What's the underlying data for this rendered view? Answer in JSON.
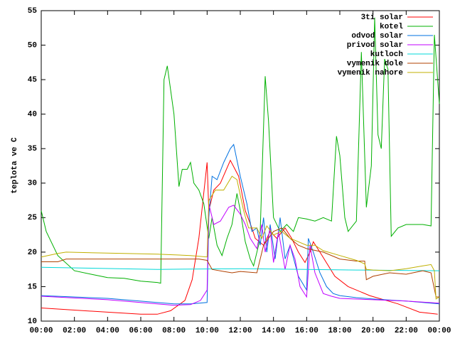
{
  "chart_data": {
    "type": "line",
    "y_label": "teplota ve C",
    "ylim": [
      10,
      55
    ],
    "yticks": [
      10,
      15,
      20,
      25,
      30,
      35,
      40,
      45,
      50,
      55
    ],
    "xlim": [
      0,
      24
    ],
    "xticks": [
      {
        "value": 0,
        "label": "00:00"
      },
      {
        "value": 2,
        "label": "02:00"
      },
      {
        "value": 4,
        "label": "04:00"
      },
      {
        "value": 6,
        "label": "06:00"
      },
      {
        "value": 8,
        "label": "08:00"
      },
      {
        "value": 10,
        "label": "10:00"
      },
      {
        "value": 12,
        "label": "12:00"
      },
      {
        "value": 14,
        "label": "14:00"
      },
      {
        "value": 16,
        "label": "16:00"
      },
      {
        "value": 18,
        "label": "18:00"
      },
      {
        "value": 20,
        "label": "20:00"
      },
      {
        "value": 22,
        "label": "22:00"
      },
      {
        "value": 24,
        "label": "00:00"
      }
    ],
    "legend": "top-right",
    "series": [
      {
        "name": "3ti solar",
        "color": "#ff0000",
        "x": [
          0,
          2,
          4,
          6,
          7,
          7.8,
          8.66,
          9.1,
          9.5,
          10,
          10.1,
          10.4,
          10.8,
          11.4,
          11.9,
          12.3,
          12.7,
          12.9,
          13.4,
          13.8,
          14.2,
          14.7,
          15.1,
          15.5,
          15.9,
          16.2,
          16.4,
          16.8,
          17.7,
          18.5,
          19.8,
          21.5,
          22.8,
          23.9
        ],
        "values": [
          11.9,
          11.6,
          11.3,
          11.0,
          11.0,
          11.5,
          13,
          16,
          22,
          33,
          26,
          29,
          30,
          33.3,
          31,
          26,
          23.5,
          22,
          21,
          23,
          22,
          23.5,
          22,
          20,
          18.5,
          20,
          21.5,
          20,
          16.5,
          15,
          13.7,
          12.5,
          11.3,
          11
        ]
      },
      {
        "name": "kotel",
        "color": "#00b000",
        "x": [
          0,
          0.3,
          1,
          2,
          3,
          4,
          5,
          6,
          7,
          7.2,
          7.4,
          7.6,
          8,
          8.3,
          8.5,
          8.8,
          9,
          9.2,
          9.5,
          9.8,
          10.1,
          10.3,
          10.6,
          10.9,
          11.2,
          11.5,
          11.8,
          12,
          12.3,
          12.6,
          12.8,
          13.1,
          13.2,
          13.5,
          13.7,
          14,
          14.4,
          14.8,
          15.2,
          15.5,
          16,
          16.5,
          17,
          17.5,
          17.8,
          18,
          18.3,
          18.5,
          19,
          19.3,
          19.6,
          19.9,
          20.1,
          20.3,
          20.5,
          20.7,
          20.9,
          21.1,
          21.5,
          22,
          23,
          23.5,
          23.7,
          24
        ],
        "values": [
          26,
          23,
          19.5,
          17.3,
          16.8,
          16.3,
          16.2,
          15.8,
          15.6,
          15.5,
          45,
          47,
          40,
          29.5,
          32,
          32,
          33,
          30,
          29,
          27,
          22,
          25,
          21,
          19.5,
          22,
          24,
          28.5,
          26,
          21.5,
          19,
          18,
          21,
          23,
          45.5,
          39,
          25,
          23,
          24,
          23,
          25,
          24.8,
          24.5,
          25,
          24.5,
          36.8,
          34,
          25,
          23,
          24.5,
          49,
          26.5,
          32.5,
          54,
          37,
          35,
          48,
          46.5,
          22.3,
          23.5,
          24,
          24,
          23.8,
          51.5,
          41.5
        ]
      },
      {
        "name": "odvod solar",
        "color": "#0070e0",
        "x": [
          0,
          4,
          8,
          9,
          10,
          10.1,
          10.3,
          10.6,
          11,
          11.4,
          11.6,
          12,
          12.4,
          12.7,
          13,
          13.2,
          13.4,
          13.6,
          13.8,
          14.1,
          14.4,
          14.7,
          15,
          15.5,
          16,
          16.1,
          16.4,
          16.8,
          17.2,
          17.6,
          18,
          19,
          20,
          22,
          24
        ],
        "values": [
          13.7,
          13.3,
          12.5,
          12.5,
          12.7,
          25,
          31,
          30.5,
          33,
          35,
          35.6,
          31,
          27,
          23,
          23.5,
          21,
          25,
          20,
          24,
          19,
          25,
          19,
          21,
          16.5,
          14.5,
          22,
          20,
          17,
          15,
          14,
          13.7,
          13.4,
          13.2,
          12.9,
          12.5
        ]
      },
      {
        "name": "privod solar",
        "color": "#c000ff",
        "x": [
          0,
          4,
          8,
          9,
          9.6,
          10,
          10.1,
          10.4,
          10.8,
          11.3,
          11.6,
          12,
          12.3,
          12.6,
          13,
          13.3,
          13.5,
          13.8,
          14,
          14.3,
          14.7,
          15,
          15.3,
          15.6,
          16,
          16.2,
          16.5,
          17,
          17.5,
          18,
          20,
          22,
          24
        ],
        "values": [
          13.6,
          13.1,
          12.3,
          12.4,
          13,
          14.5,
          27,
          24,
          24.5,
          26.5,
          26.8,
          25.5,
          24,
          22,
          20.5,
          24,
          20,
          23.5,
          18.5,
          23,
          17.5,
          21,
          19,
          15,
          13.5,
          21,
          17,
          14,
          13.6,
          13.3,
          13.1,
          12.9,
          12.6
        ]
      },
      {
        "name": "kutloch",
        "color": "#00d8d8",
        "x": [
          0,
          7,
          12,
          16,
          19,
          24
        ],
        "values": [
          17.8,
          17.5,
          17.6,
          17.5,
          17.4,
          17.3
        ]
      },
      {
        "name": "vymenik dole",
        "color": "#b04000",
        "x": [
          0,
          1,
          1.5,
          9.5,
          10,
          10.3,
          11,
          11.5,
          12,
          13,
          13.4,
          14,
          14.5,
          15,
          15.5,
          16,
          17,
          18,
          19,
          19.5,
          19.6,
          20,
          21,
          22,
          23,
          23.5,
          23.8,
          24
        ],
        "values": [
          18.6,
          18.6,
          19,
          19,
          18.8,
          17.5,
          17.2,
          17,
          17.2,
          17,
          21,
          23,
          23.5,
          22,
          21,
          20.5,
          20,
          19,
          18.7,
          18.7,
          16,
          16.5,
          17,
          16.8,
          17.3,
          17,
          13.5,
          13.5
        ]
      },
      {
        "name": "vymenik nahore",
        "color": "#c0b000",
        "x": [
          0,
          1,
          1.5,
          5,
          7,
          9,
          10,
          10.1,
          10.5,
          11,
          11.5,
          11.8,
          12.2,
          12.5,
          13,
          13.3,
          13.6,
          14,
          14.5,
          15,
          15.5,
          16,
          16.5,
          17,
          18,
          19,
          19.5,
          19.6,
          20,
          21,
          22,
          23,
          23.5,
          23.7,
          23.8,
          24
        ],
        "values": [
          19.3,
          19.8,
          20,
          19.8,
          19.7,
          19.5,
          19.3,
          27.5,
          29,
          29,
          31,
          30.5,
          26,
          23.5,
          23.5,
          22,
          23.8,
          22.5,
          23,
          22,
          21.5,
          21,
          21,
          20.2,
          19.5,
          18.8,
          18.3,
          17.5,
          17.4,
          17.3,
          17.6,
          18,
          18.2,
          17.3,
          13.2,
          13.5
        ]
      }
    ]
  }
}
